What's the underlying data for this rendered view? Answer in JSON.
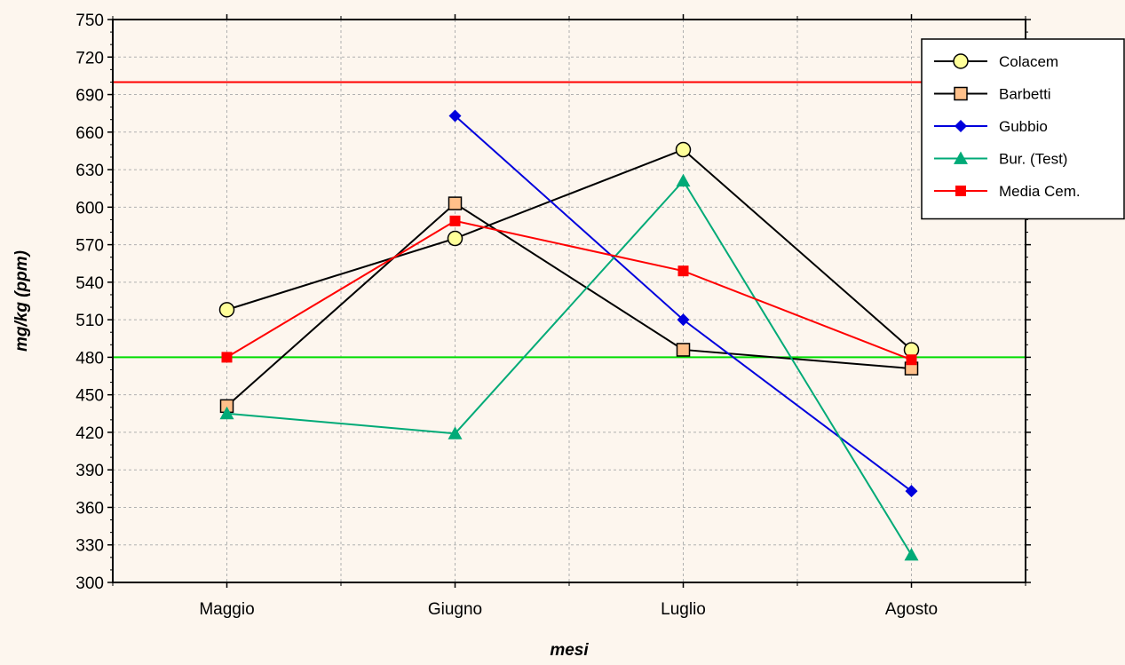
{
  "chart_data": {
    "type": "line",
    "xlabel": "mesi",
    "ylabel": "mg/kg (ppm)",
    "categories": [
      "Maggio",
      "Giugno",
      "Luglio",
      "Agosto"
    ],
    "ylim": [
      300,
      750
    ],
    "yticks": [
      300,
      330,
      360,
      390,
      420,
      450,
      480,
      510,
      540,
      570,
      600,
      630,
      660,
      690,
      720,
      750
    ],
    "grid": true,
    "legend_position": "top-right",
    "reference_lines": [
      {
        "value": 700,
        "color": "#ff0000"
      },
      {
        "value": 480,
        "color": "#00dd00"
      }
    ],
    "series": [
      {
        "name": "Colacem",
        "values": [
          518,
          575,
          646,
          486
        ],
        "color": "#000000",
        "marker": "circle",
        "fill": "#ffff99"
      },
      {
        "name": "Barbetti",
        "values": [
          441,
          603,
          486,
          471
        ],
        "color": "#000000",
        "marker": "square",
        "fill": "#ffc08a"
      },
      {
        "name": "Gubbio",
        "values": [
          null,
          673,
          510,
          373
        ],
        "color": "#0000dd",
        "marker": "diamond",
        "fill": "#0000dd"
      },
      {
        "name": "Bur. (Test)",
        "values": [
          435,
          419,
          621,
          322
        ],
        "color": "#00aa77",
        "marker": "triangle",
        "fill": "#00aa77"
      },
      {
        "name": "Media Cem.",
        "values": [
          480,
          589,
          549,
          478
        ],
        "color": "#ff0000",
        "marker": "square",
        "fill": "#ff0000"
      }
    ]
  }
}
